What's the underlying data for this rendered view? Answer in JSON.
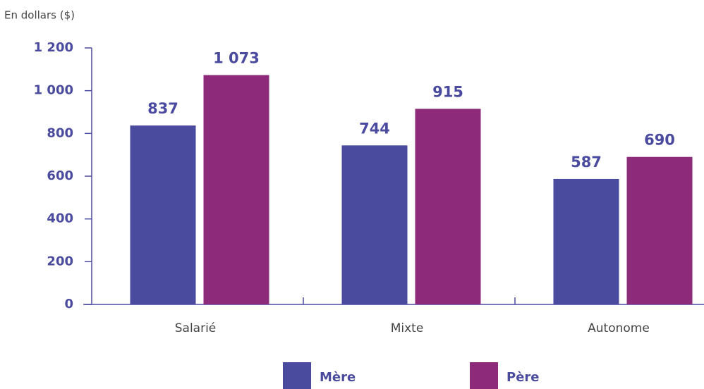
{
  "chart_data": {
    "type": "bar",
    "y_label": "En dollars ($)",
    "categories": [
      "Salarié",
      "Mixte",
      "Autonome"
    ],
    "series": [
      {
        "name": "Mère",
        "color": "#4a4a9e",
        "values": [
          837,
          744,
          587
        ],
        "value_labels": [
          "837",
          "744",
          "587"
        ]
      },
      {
        "name": "Père",
        "color": "#8e2a7a",
        "values": [
          1073,
          915,
          690
        ],
        "value_labels": [
          "1 073",
          "915",
          "690"
        ]
      }
    ],
    "ylim": [
      0,
      1200
    ],
    "yticks": [
      0,
      200,
      400,
      600,
      800,
      {
        "value": 1000,
        "label": "1 000"
      },
      {
        "value": 1200,
        "label": "1 200"
      }
    ]
  }
}
